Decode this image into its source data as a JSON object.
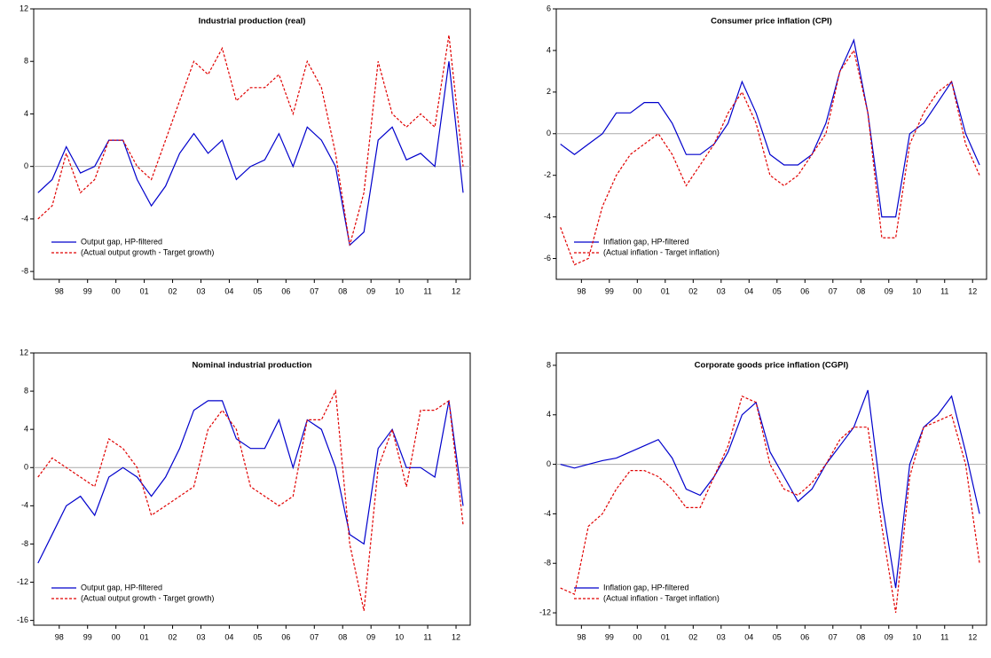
{
  "chart_data": [
    {
      "type": "line",
      "title": "Industrial production (real)",
      "x": [
        1997.75,
        1998.25,
        1998.75,
        1999.25,
        1999.75,
        2000.25,
        2000.75,
        2001.25,
        2001.75,
        2002.25,
        2002.75,
        2003.25,
        2003.75,
        2004.25,
        2004.75,
        2005.25,
        2005.75,
        2006.25,
        2006.75,
        2007.25,
        2007.75,
        2008.25,
        2008.75,
        2009.25,
        2009.75,
        2010.25,
        2010.75,
        2011.25,
        2011.75,
        2012.25,
        2012.75
      ],
      "xlim": [
        1997.6,
        2013.0
      ],
      "xticks": [
        {
          "value": 1998.5,
          "label": "98"
        },
        {
          "value": 1999.5,
          "label": "99"
        },
        {
          "value": 2000.5,
          "label": "00"
        },
        {
          "value": 2001.5,
          "label": "01"
        },
        {
          "value": 2002.5,
          "label": "02"
        },
        {
          "value": 2003.5,
          "label": "03"
        },
        {
          "value": 2004.5,
          "label": "04"
        },
        {
          "value": 2005.5,
          "label": "05"
        },
        {
          "value": 2006.5,
          "label": "06"
        },
        {
          "value": 2007.5,
          "label": "07"
        },
        {
          "value": 2008.5,
          "label": "08"
        },
        {
          "value": 2009.5,
          "label": "09"
        },
        {
          "value": 2010.5,
          "label": "10"
        },
        {
          "value": 2011.5,
          "label": "11"
        },
        {
          "value": 2012.5,
          "label": "12"
        }
      ],
      "ylim": [
        -8.6,
        12
      ],
      "yticks": [
        -8,
        -4,
        0,
        4,
        8,
        12
      ],
      "zero_line": true,
      "legend": "lower left",
      "series": [
        {
          "name": "Output gap, HP-filtered",
          "color": "#0000cc",
          "style": "solid",
          "values": [
            -2,
            -1,
            1.5,
            -0.5,
            0,
            2,
            2,
            -1,
            -3,
            -1.5,
            1,
            2.5,
            1,
            2,
            -1,
            0,
            0.5,
            2.5,
            0,
            3,
            2,
            0,
            -6,
            -5,
            2,
            3,
            0.5,
            1,
            0,
            8,
            -2
          ]
        },
        {
          "name": "(Actual output growth - Target growth)",
          "color": "#e00000",
          "style": "dashed",
          "values": [
            -4,
            -3,
            1,
            -2,
            -1,
            2,
            2,
            0,
            -1,
            2,
            5,
            8,
            7,
            9,
            5,
            6,
            6,
            7,
            4,
            8,
            6,
            1,
            -6,
            -2,
            8,
            4,
            3,
            4,
            3,
            10,
            0
          ]
        }
      ]
    },
    {
      "type": "line",
      "title": "Consumer price inflation (CPI)",
      "x": [
        1997.75,
        1998.25,
        1998.75,
        1999.25,
        1999.75,
        2000.25,
        2000.75,
        2001.25,
        2001.75,
        2002.25,
        2002.75,
        2003.25,
        2003.75,
        2004.25,
        2004.75,
        2005.25,
        2005.75,
        2006.25,
        2006.75,
        2007.25,
        2007.75,
        2008.25,
        2008.75,
        2009.25,
        2009.75,
        2010.25,
        2010.75,
        2011.25,
        2011.75,
        2012.25,
        2012.75
      ],
      "xlim": [
        1997.6,
        2013.0
      ],
      "xticks": [
        {
          "value": 1998.5,
          "label": "98"
        },
        {
          "value": 1999.5,
          "label": "99"
        },
        {
          "value": 2000.5,
          "label": "00"
        },
        {
          "value": 2001.5,
          "label": "01"
        },
        {
          "value": 2002.5,
          "label": "02"
        },
        {
          "value": 2003.5,
          "label": "03"
        },
        {
          "value": 2004.5,
          "label": "04"
        },
        {
          "value": 2005.5,
          "label": "05"
        },
        {
          "value": 2006.5,
          "label": "06"
        },
        {
          "value": 2007.5,
          "label": "07"
        },
        {
          "value": 2008.5,
          "label": "08"
        },
        {
          "value": 2009.5,
          "label": "09"
        },
        {
          "value": 2010.5,
          "label": "10"
        },
        {
          "value": 2011.5,
          "label": "11"
        },
        {
          "value": 2012.5,
          "label": "12"
        }
      ],
      "ylim": [
        -7,
        6
      ],
      "yticks": [
        -6,
        -4,
        -2,
        0,
        2,
        4,
        6
      ],
      "zero_line": true,
      "legend": "lower left",
      "series": [
        {
          "name": "Inflation gap, HP-filtered",
          "color": "#0000cc",
          "style": "solid",
          "values": [
            -0.5,
            -1,
            -0.5,
            0,
            1,
            1,
            1.5,
            1.5,
            0.5,
            -1,
            -1,
            -0.5,
            0.5,
            2.5,
            1,
            -1,
            -1.5,
            -1.5,
            -1,
            0.5,
            3,
            4.5,
            1,
            -4,
            -4,
            0,
            0.5,
            1.5,
            2.5,
            0,
            -1.5
          ]
        },
        {
          "name": "(Actual inflation - Target inflation)",
          "color": "#e00000",
          "style": "dashed",
          "values": [
            -4.5,
            -6.3,
            -6,
            -3.5,
            -2,
            -1,
            -0.5,
            0,
            -1,
            -2.5,
            -1.5,
            -0.5,
            1,
            2,
            0.5,
            -2,
            -2.5,
            -2,
            -1,
            0,
            3,
            4,
            1,
            -5,
            -5,
            -0.5,
            1,
            2,
            2.5,
            -0.5,
            -2
          ]
        }
      ]
    },
    {
      "type": "line",
      "title": "Nominal industrial production",
      "x": [
        1997.75,
        1998.25,
        1998.75,
        1999.25,
        1999.75,
        2000.25,
        2000.75,
        2001.25,
        2001.75,
        2002.25,
        2002.75,
        2003.25,
        2003.75,
        2004.25,
        2004.75,
        2005.25,
        2005.75,
        2006.25,
        2006.75,
        2007.25,
        2007.75,
        2008.25,
        2008.75,
        2009.25,
        2009.75,
        2010.25,
        2010.75,
        2011.25,
        2011.75,
        2012.25,
        2012.75
      ],
      "xlim": [
        1997.6,
        2013.0
      ],
      "xticks": [
        {
          "value": 1998.5,
          "label": "98"
        },
        {
          "value": 1999.5,
          "label": "99"
        },
        {
          "value": 2000.5,
          "label": "00"
        },
        {
          "value": 2001.5,
          "label": "01"
        },
        {
          "value": 2002.5,
          "label": "02"
        },
        {
          "value": 2003.5,
          "label": "03"
        },
        {
          "value": 2004.5,
          "label": "04"
        },
        {
          "value": 2005.5,
          "label": "05"
        },
        {
          "value": 2006.5,
          "label": "06"
        },
        {
          "value": 2007.5,
          "label": "07"
        },
        {
          "value": 2008.5,
          "label": "08"
        },
        {
          "value": 2009.5,
          "label": "09"
        },
        {
          "value": 2010.5,
          "label": "10"
        },
        {
          "value": 2011.5,
          "label": "11"
        },
        {
          "value": 2012.5,
          "label": "12"
        }
      ],
      "ylim": [
        -16.5,
        12
      ],
      "yticks": [
        -16,
        -12,
        -8,
        -4,
        0,
        4,
        8,
        12
      ],
      "zero_line": true,
      "legend": "lower left",
      "series": [
        {
          "name": "Output gap, HP-filtered",
          "color": "#0000cc",
          "style": "solid",
          "values": [
            -10,
            -7,
            -4,
            -3,
            -5,
            -1,
            0,
            -1,
            -3,
            -1,
            2,
            6,
            7,
            7,
            3,
            2,
            2,
            5,
            0,
            5,
            4,
            0,
            -7,
            -8,
            2,
            4,
            0,
            0,
            -1,
            7,
            -4
          ]
        },
        {
          "name": "(Actual output growth - Target growth)",
          "color": "#e00000",
          "style": "dashed",
          "values": [
            -1,
            1,
            0,
            -1,
            -2,
            3,
            2,
            0,
            -5,
            -4,
            -3,
            -2,
            4,
            6,
            4,
            -2,
            -3,
            -4,
            -3,
            5,
            5,
            8,
            -8,
            -15,
            0,
            4,
            -2,
            6,
            6,
            7,
            -6
          ]
        }
      ]
    },
    {
      "type": "line",
      "title": "Corporate goods price inflation (CGPI)",
      "x": [
        1997.75,
        1998.25,
        1998.75,
        1999.25,
        1999.75,
        2000.25,
        2000.75,
        2001.25,
        2001.75,
        2002.25,
        2002.75,
        2003.25,
        2003.75,
        2004.25,
        2004.75,
        2005.25,
        2005.75,
        2006.25,
        2006.75,
        2007.25,
        2007.75,
        2008.25,
        2008.75,
        2009.25,
        2009.75,
        2010.25,
        2010.75,
        2011.25,
        2011.75,
        2012.25,
        2012.75
      ],
      "xlim": [
        1997.6,
        2013.0
      ],
      "xticks": [
        {
          "value": 1998.5,
          "label": "98"
        },
        {
          "value": 1999.5,
          "label": "99"
        },
        {
          "value": 2000.5,
          "label": "00"
        },
        {
          "value": 2001.5,
          "label": "01"
        },
        {
          "value": 2002.5,
          "label": "02"
        },
        {
          "value": 2003.5,
          "label": "03"
        },
        {
          "value": 2004.5,
          "label": "04"
        },
        {
          "value": 2005.5,
          "label": "05"
        },
        {
          "value": 2006.5,
          "label": "06"
        },
        {
          "value": 2007.5,
          "label": "07"
        },
        {
          "value": 2008.5,
          "label": "08"
        },
        {
          "value": 2009.5,
          "label": "09"
        },
        {
          "value": 2010.5,
          "label": "10"
        },
        {
          "value": 2011.5,
          "label": "11"
        },
        {
          "value": 2012.5,
          "label": "12"
        }
      ],
      "ylim": [
        -13,
        9
      ],
      "yticks": [
        -12,
        -8,
        -4,
        0,
        4,
        8
      ],
      "zero_line": true,
      "legend": "lower left",
      "series": [
        {
          "name": "Inflation gap, HP-filtered",
          "color": "#0000cc",
          "style": "solid",
          "values": [
            0,
            -0.3,
            0,
            0.3,
            0.5,
            1,
            1.5,
            2,
            0.5,
            -2,
            -2.5,
            -1,
            1,
            4,
            5,
            1,
            -1,
            -3,
            -2,
            0,
            1.5,
            3,
            6,
            -3,
            -10,
            0,
            3,
            4,
            5.5,
            1,
            -4
          ]
        },
        {
          "name": "(Actual inflation - Target inflation)",
          "color": "#e00000",
          "style": "dashed",
          "values": [
            -10,
            -10.5,
            -5,
            -4,
            -2,
            -0.5,
            -0.5,
            -1,
            -2,
            -3.5,
            -3.5,
            -1,
            1.5,
            5.5,
            5,
            0,
            -2,
            -2.5,
            -1.5,
            0,
            2,
            3,
            3,
            -5,
            -12,
            -1,
            3,
            3.5,
            4,
            0,
            -8
          ]
        }
      ]
    }
  ]
}
